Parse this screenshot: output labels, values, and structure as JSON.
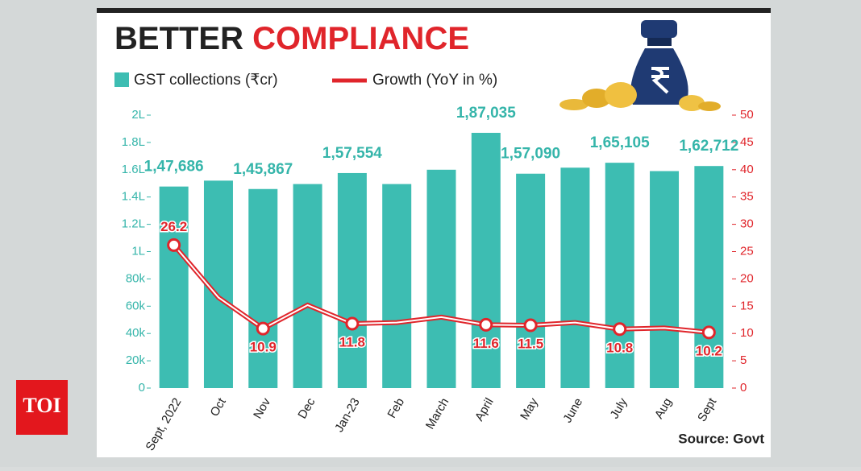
{
  "logo": "TOI",
  "chart_data": {
    "type": "bar-line",
    "title": [
      "BETTER",
      "COMPLIANCE"
    ],
    "source": "Source: Govt",
    "categories": [
      "Sept, 2022",
      "Oct",
      "Nov",
      "Dec",
      "Jan-23",
      "Feb",
      "March",
      "April",
      "May",
      "June",
      "July",
      "Aug",
      "Sept"
    ],
    "series": [
      {
        "name": "GST collections (₹cr)",
        "color": "#3dbdb2",
        "values": [
          147686,
          152000,
          145867,
          149500,
          157554,
          149500,
          160000,
          187035,
          157090,
          161500,
          165105,
          159000,
          162712
        ],
        "value_labels": [
          "1,47,686",
          null,
          "1,45,867",
          null,
          "1,57,554",
          null,
          null,
          "1,87,035",
          "1,57,090",
          null,
          "1,65,105",
          null,
          "1,62,712"
        ]
      },
      {
        "name": "Growth (YoY in %)",
        "color": "#e0252b",
        "axis": "y2",
        "values": [
          26.2,
          16.6,
          10.9,
          15.2,
          11.8,
          12,
          13,
          11.6,
          11.5,
          12,
          10.8,
          11,
          10.2
        ],
        "value_labels": [
          "26.2",
          null,
          "10.9",
          null,
          "11.8",
          null,
          null,
          "11.6",
          "11.5",
          null,
          "10.8",
          null,
          "10.2"
        ]
      }
    ],
    "ylim": [
      0,
      200000
    ],
    "yticks": [
      0,
      {
        "value": 20000,
        "label": "20k"
      },
      {
        "value": 40000,
        "label": "40k"
      },
      {
        "value": 60000,
        "label": "60k"
      },
      {
        "value": 80000,
        "label": "80k"
      },
      {
        "value": 100000,
        "label": "1L"
      },
      {
        "value": 120000,
        "label": "1.2L"
      },
      {
        "value": 140000,
        "label": "1.4L"
      },
      {
        "value": 160000,
        "label": "1.6L"
      },
      {
        "value": 180000,
        "label": "1.8L"
      },
      {
        "value": 200000,
        "label": "2L"
      }
    ],
    "y2lim": [
      0,
      50
    ],
    "y2ticks": [
      0,
      5,
      10,
      15,
      20,
      25,
      30,
      35,
      40,
      45,
      50
    ]
  }
}
